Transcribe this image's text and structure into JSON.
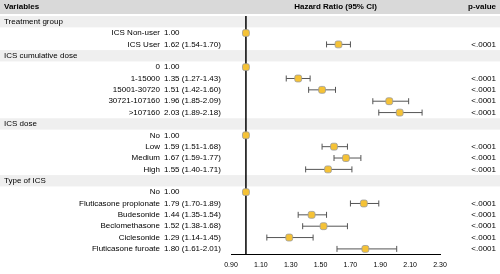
{
  "chart_data": {
    "type": "forest",
    "columns": [
      "Variables",
      "Hazard Ratio (95% CI)",
      "p-value"
    ],
    "color": "#f5c236",
    "reference_line": 1,
    "xlim": [
      0.9,
      2.3
    ],
    "xticks": [
      {
        "value": 0.9,
        "label": "0.90"
      },
      {
        "value": 1.1,
        "label": "1.10"
      },
      {
        "value": 1.3,
        "label": "1.30"
      },
      {
        "value": 1.5,
        "label": "1.50"
      },
      {
        "value": 1.7,
        "label": "1.70"
      },
      {
        "value": 1.9,
        "label": "1.90"
      },
      {
        "value": 2.1,
        "label": "2.10"
      },
      {
        "value": 2.3,
        "label": "2.30"
      }
    ],
    "grid": false,
    "tick_labels": "x",
    "rows": [
      {
        "label": "Treatment group",
        "group": true
      },
      {
        "label": "ICS Non-user",
        "value": 1.0,
        "value_label": "1.00"
      },
      {
        "label": "ICS User",
        "value": 1.62,
        "lower": 1.54,
        "upper": 1.7,
        "value_label": "1.62 (1.54-1.70)",
        "p_label": "<.0001"
      },
      {
        "label": "ICS cumulative dose",
        "group": true
      },
      {
        "label": "0",
        "value": 1.0,
        "value_label": "1.00"
      },
      {
        "label": "1-15000",
        "value": 1.35,
        "lower": 1.27,
        "upper": 1.43,
        "value_label": "1.35 (1.27-1.43)",
        "p_label": "<.0001"
      },
      {
        "label": "15001-30720",
        "value": 1.51,
        "lower": 1.42,
        "upper": 1.6,
        "value_label": "1.51 (1.42-1.60)",
        "p_label": "<.0001"
      },
      {
        "label": "30721-107160",
        "value": 1.96,
        "lower": 1.85,
        "upper": 2.09,
        "value_label": "1.96 (1.85-2.09)",
        "p_label": "<.0001"
      },
      {
        "label": ">107160",
        "value": 2.03,
        "lower": 1.89,
        "upper": 2.18,
        "value_label": "2.03 (1.89-2.18)",
        "p_label": "<.0001"
      },
      {
        "label": "ICS dose",
        "group": true
      },
      {
        "label": "No",
        "value": 1.0,
        "value_label": "1.00"
      },
      {
        "label": "Low",
        "value": 1.59,
        "lower": 1.51,
        "upper": 1.68,
        "value_label": "1.59 (1.51-1.68)",
        "p_label": "<.0001"
      },
      {
        "label": "Medium",
        "value": 1.67,
        "lower": 1.59,
        "upper": 1.77,
        "value_label": "1.67 (1.59-1.77)",
        "p_label": "<.0001"
      },
      {
        "label": "High",
        "value": 1.55,
        "lower": 1.4,
        "upper": 1.71,
        "value_label": "1.55 (1.40-1.71)",
        "p_label": "<.0001"
      },
      {
        "label": "Type of ICS",
        "group": true
      },
      {
        "label": "No",
        "value": 1.0,
        "value_label": "1.00"
      },
      {
        "label": "Fluticasone propionate",
        "value": 1.79,
        "lower": 1.7,
        "upper": 1.89,
        "value_label": "1.79 (1.70-1.89)",
        "p_label": "<.0001"
      },
      {
        "label": "Budesonide",
        "value": 1.44,
        "lower": 1.35,
        "upper": 1.54,
        "value_label": "1.44 (1.35-1.54)",
        "p_label": "<.0001"
      },
      {
        "label": "Beclomethasone",
        "value": 1.52,
        "lower": 1.38,
        "upper": 1.68,
        "value_label": "1.52 (1.38-1.68)",
        "p_label": "<.0001"
      },
      {
        "label": "Ciclesonide",
        "value": 1.29,
        "lower": 1.14,
        "upper": 1.45,
        "value_label": "1.29 (1.14-1.45)",
        "p_label": "<.0001"
      },
      {
        "label": "Fluticasone furoate",
        "value": 1.8,
        "lower": 1.61,
        "upper": 2.01,
        "value_label": "1.80 (1.61-2.01)",
        "p_label": "<.0001"
      }
    ]
  }
}
